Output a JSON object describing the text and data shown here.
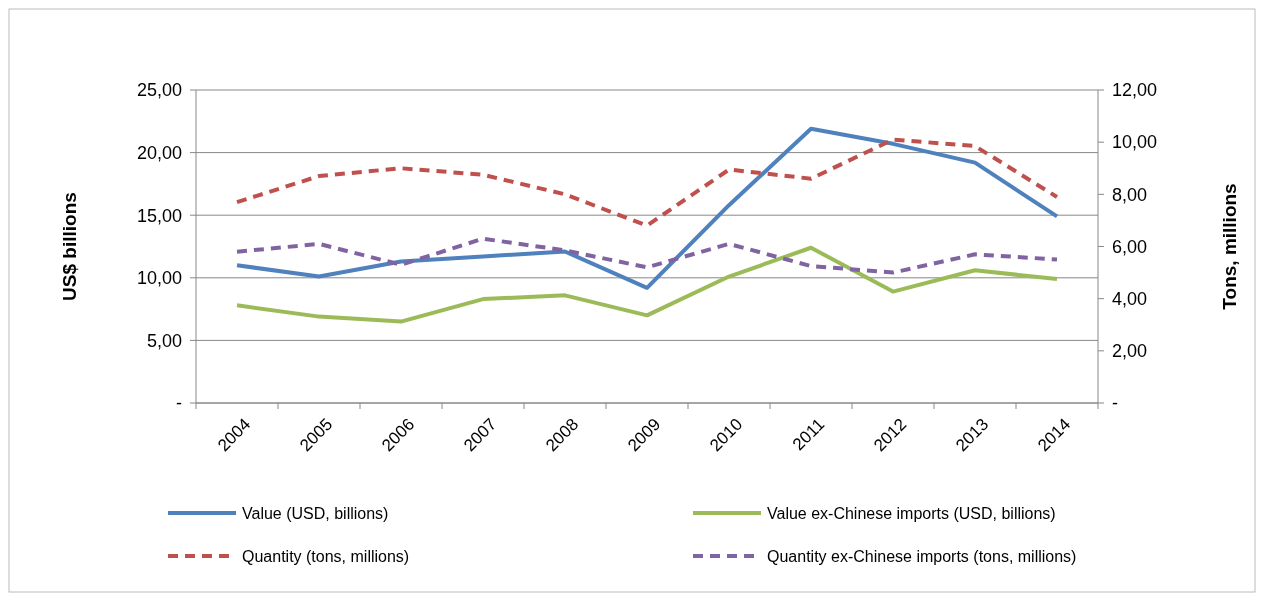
{
  "chart_data": {
    "type": "line",
    "ylabel": "US$ billions",
    "y2label": "Tons, millions",
    "categories": [
      "2004",
      "2005",
      "2006",
      "2007",
      "2008",
      "2009",
      "2010",
      "2011",
      "2012",
      "2013",
      "2014"
    ],
    "ylim": [
      0,
      25
    ],
    "yticks": [
      {
        "value": 0,
        "label": "-"
      },
      {
        "value": 5,
        "label": "5,00"
      },
      {
        "value": 10,
        "label": "10,00"
      },
      {
        "value": 15,
        "label": "15,00"
      },
      {
        "value": 20,
        "label": "20,00"
      },
      {
        "value": 25,
        "label": "25,00"
      }
    ],
    "y2lim": [
      0,
      12
    ],
    "y2ticks": [
      {
        "value": 0,
        "label": "-"
      },
      {
        "value": 2,
        "label": "2,00"
      },
      {
        "value": 4,
        "label": "4,00"
      },
      {
        "value": 6,
        "label": "6,00"
      },
      {
        "value": 8,
        "label": "8,00"
      },
      {
        "value": 10,
        "label": "10,00"
      },
      {
        "value": 12,
        "label": "12,00"
      }
    ],
    "grid": "y",
    "legend": "bottom",
    "series": [
      {
        "name": "Value (USD, billions)",
        "color": "#4f81bd",
        "line_style": "solid",
        "values": [
          11.0,
          10.1,
          11.3,
          11.7,
          12.1,
          9.2,
          15.8,
          21.9,
          20.7,
          19.2,
          14.9
        ]
      },
      {
        "name": "Value ex-Chinese imports (USD, billions)",
        "color": "#9bbb59",
        "line_style": "solid",
        "values": [
          7.8,
          6.9,
          6.5,
          8.3,
          8.6,
          7.0,
          10.1,
          12.4,
          8.9,
          10.6,
          9.9
        ]
      },
      {
        "name": "Quantity (tons, millions)",
        "color": "#c0504d",
        "line_style": "dashed",
        "axis": "y2",
        "values": [
          7.7,
          8.7,
          9.0,
          8.75,
          8.0,
          6.8,
          8.95,
          8.6,
          10.1,
          9.85,
          7.9
        ]
      },
      {
        "name": "Quantity ex-Chinese imports (tons, millions)",
        "color": "#8064a2",
        "line_style": "dashed",
        "axis": "y2",
        "values": [
          5.8,
          6.1,
          5.3,
          6.3,
          5.85,
          5.2,
          6.1,
          5.25,
          5.0,
          5.7,
          5.5
        ]
      }
    ]
  }
}
